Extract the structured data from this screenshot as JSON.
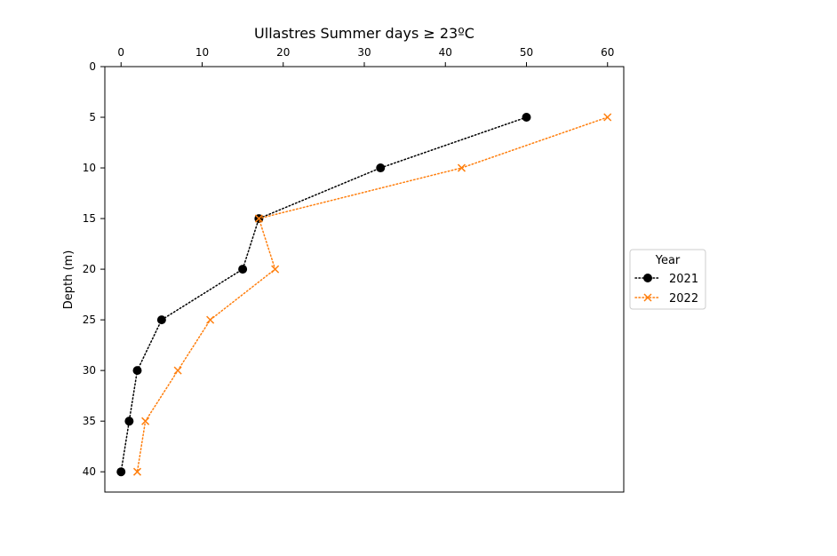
{
  "chart_data": {
    "type": "line",
    "title": "Ullastres Summer days ≥ 23ºC",
    "xlabel": "",
    "ylabel": "Depth (m)",
    "x_axis_position": "top",
    "y_axis_inverted": true,
    "xlim": [
      -2,
      62
    ],
    "ylim": [
      0,
      42
    ],
    "x_ticks": [
      0,
      10,
      20,
      30,
      40,
      50,
      60
    ],
    "y_ticks": [
      0,
      5,
      10,
      15,
      20,
      25,
      30,
      35,
      40
    ],
    "grid": false,
    "legend": {
      "title": "Year",
      "placement": "right-center-outside"
    },
    "series": [
      {
        "name": "2021",
        "color": "#000000",
        "marker": "circle",
        "line_style": "dotted",
        "points": [
          {
            "x": 50,
            "y": 5
          },
          {
            "x": 32,
            "y": 10
          },
          {
            "x": 17,
            "y": 15
          },
          {
            "x": 15,
            "y": 20
          },
          {
            "x": 5,
            "y": 25
          },
          {
            "x": 2,
            "y": 30
          },
          {
            "x": 1,
            "y": 35
          },
          {
            "x": 0,
            "y": 40
          }
        ]
      },
      {
        "name": "2022",
        "color": "#ff7f0e",
        "marker": "x",
        "line_style": "dotted",
        "points": [
          {
            "x": 60,
            "y": 5
          },
          {
            "x": 42,
            "y": 10
          },
          {
            "x": 17,
            "y": 15
          },
          {
            "x": 19,
            "y": 20
          },
          {
            "x": 11,
            "y": 25
          },
          {
            "x": 7,
            "y": 30
          },
          {
            "x": 3,
            "y": 35
          },
          {
            "x": 2,
            "y": 40
          }
        ]
      }
    ]
  }
}
